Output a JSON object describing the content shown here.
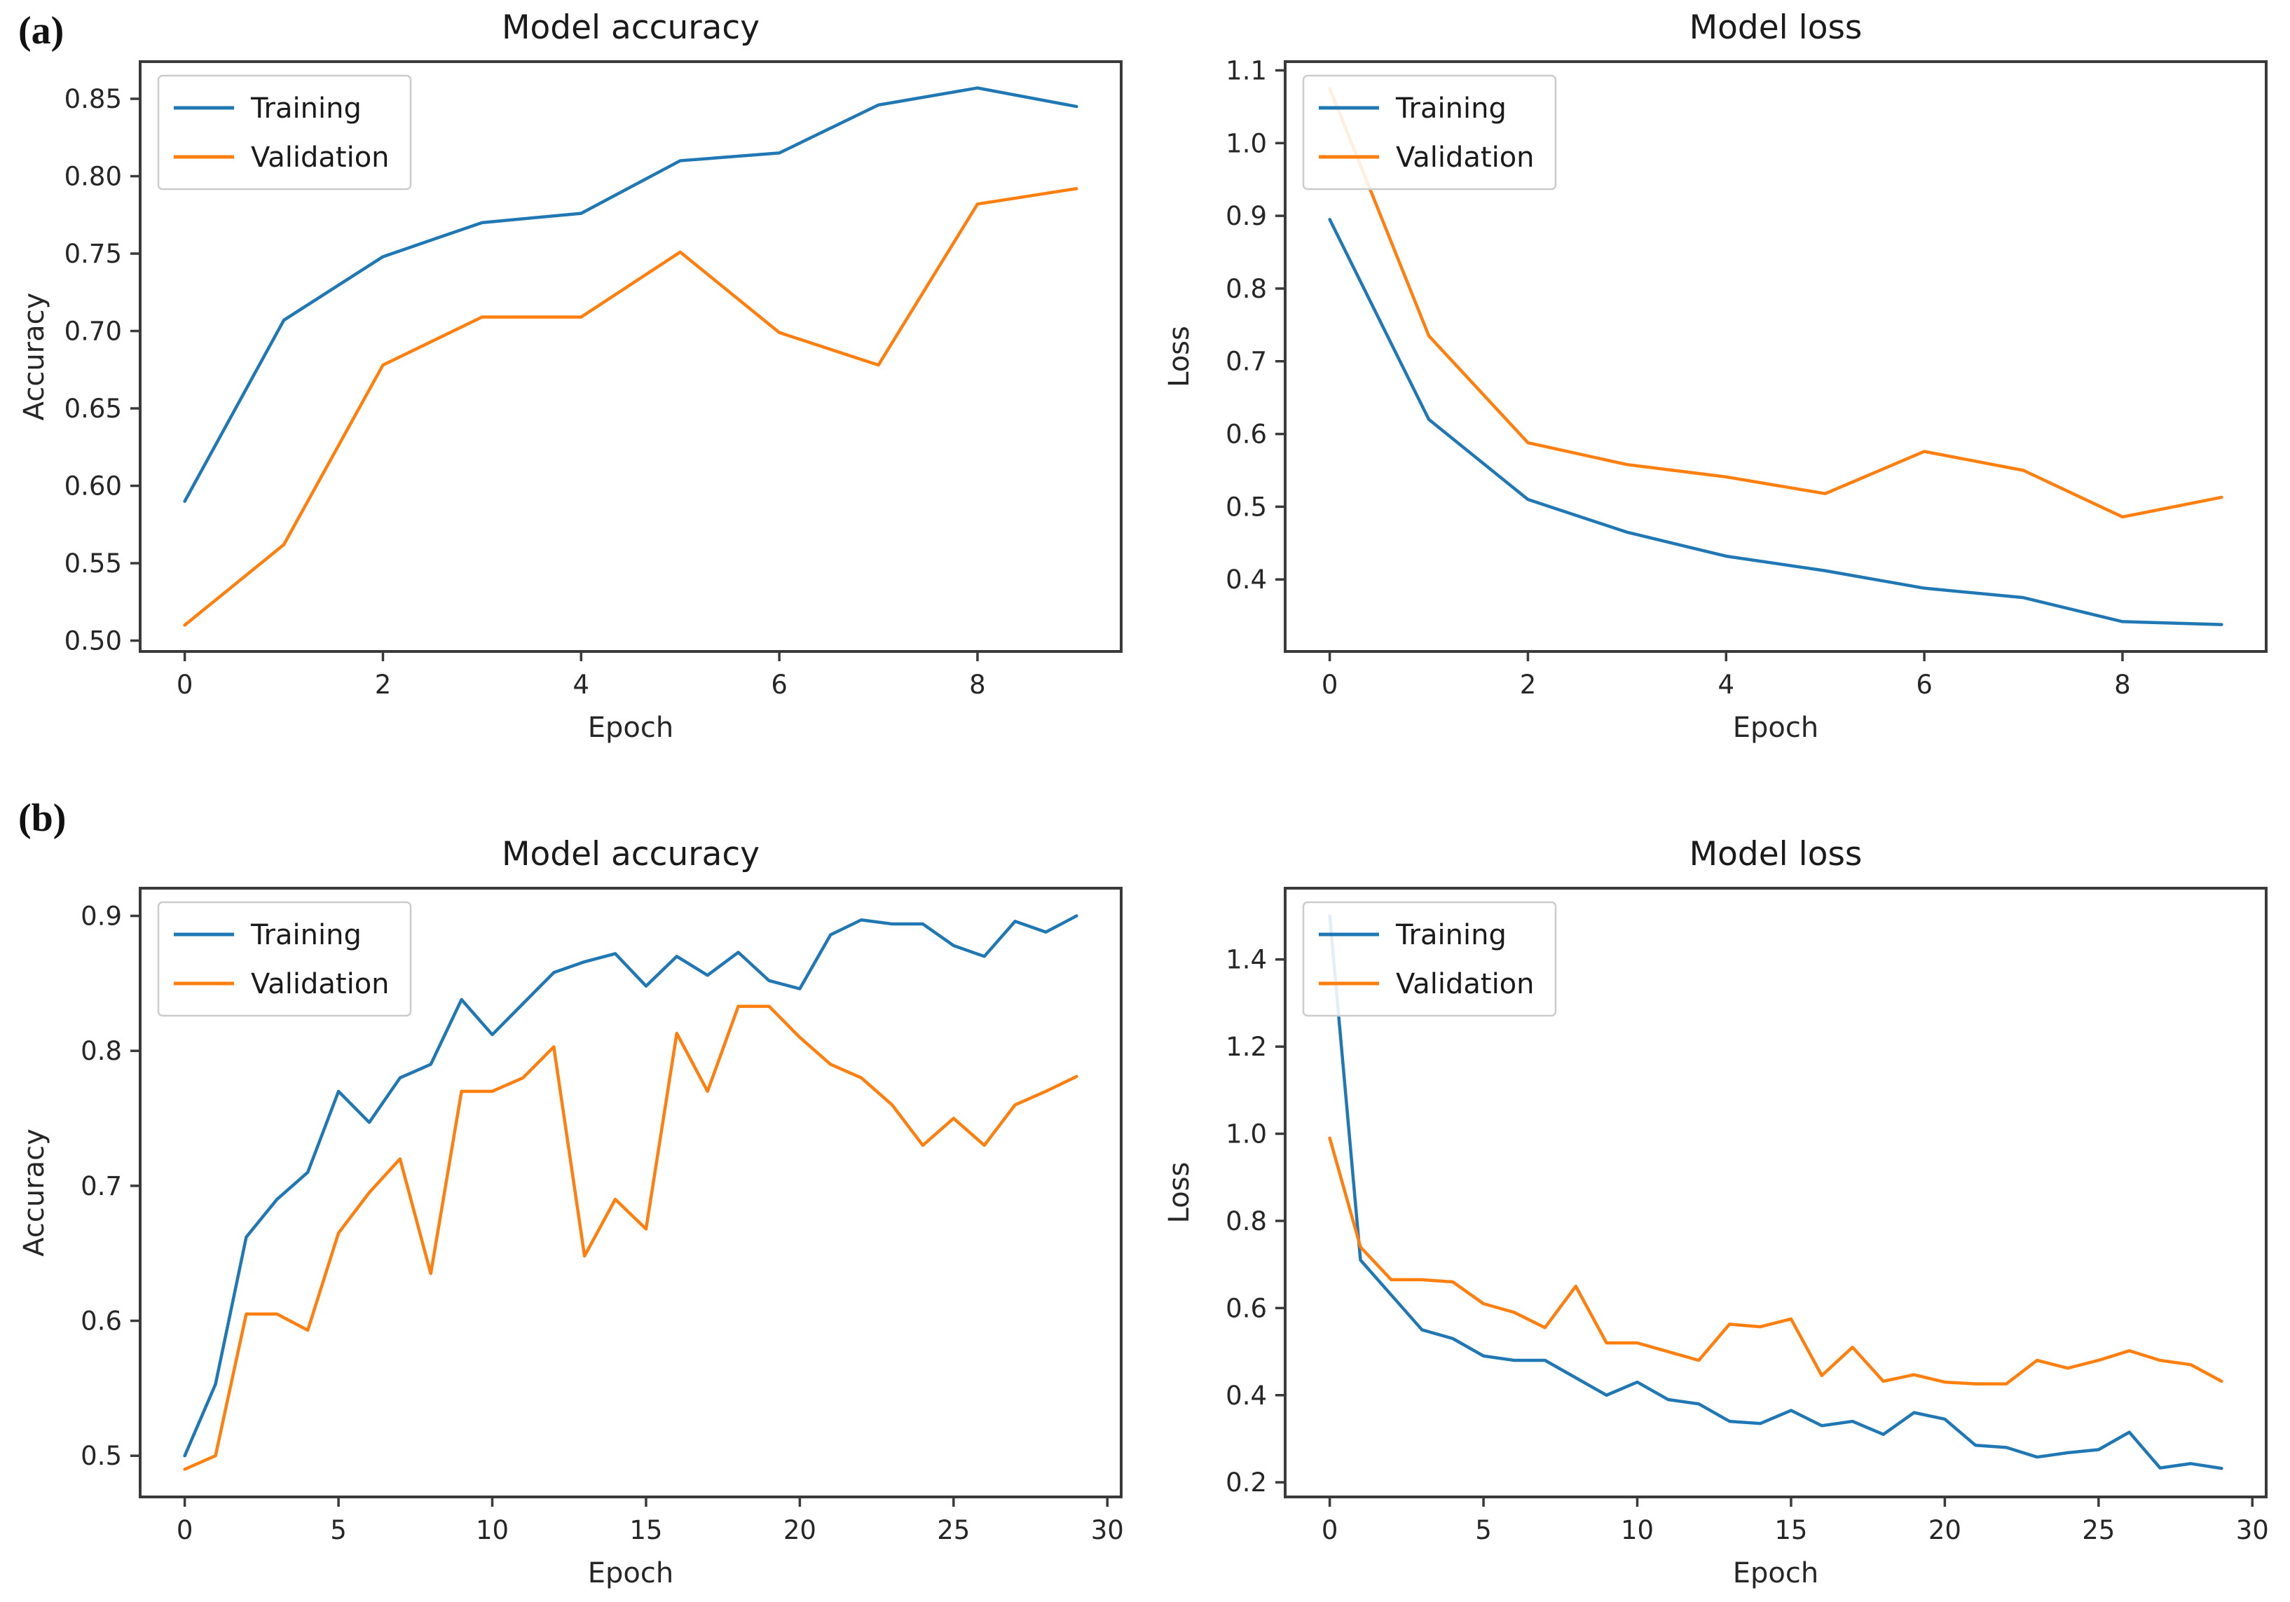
{
  "figure": {
    "row_labels": [
      {
        "label": "(a)"
      },
      {
        "label": "(b)"
      }
    ],
    "colors": {
      "training": "#1f77b4",
      "validation": "#ff7f0e",
      "axis": "#3a3a3a",
      "text": "#262626",
      "legend_border": "#cccccc"
    }
  },
  "chart_data": [
    {
      "id": "a-accuracy",
      "row": "a",
      "type": "line",
      "title": "Model accuracy",
      "xlabel": "Epoch",
      "ylabel": "Accuracy",
      "grid": false,
      "legend_position": "upper left",
      "legend": [
        "Training",
        "Validation"
      ],
      "x": [
        0,
        1,
        2,
        3,
        4,
        5,
        6,
        7,
        8,
        9
      ],
      "xlim": [
        -0.45,
        9.45
      ],
      "ylim": [
        0.493,
        0.874
      ],
      "xticks": [
        0,
        2,
        4,
        6,
        8
      ],
      "yticks": [
        0.5,
        0.55,
        0.6,
        0.65,
        0.7,
        0.75,
        0.8,
        0.85
      ],
      "xtick_decimals": 0,
      "ytick_decimals": 2,
      "series": [
        {
          "name": "Training",
          "color": "#1f77b4",
          "values": [
            0.59,
            0.707,
            0.748,
            0.77,
            0.776,
            0.81,
            0.815,
            0.846,
            0.857,
            0.845
          ]
        },
        {
          "name": "Validation",
          "color": "#ff7f0e",
          "values": [
            0.51,
            0.562,
            0.678,
            0.709,
            0.709,
            0.751,
            0.699,
            0.678,
            0.782,
            0.792
          ]
        }
      ]
    },
    {
      "id": "a-loss",
      "row": "a",
      "type": "line",
      "title": "Model loss",
      "xlabel": "Epoch",
      "ylabel": "Loss",
      "grid": false,
      "legend_position": "upper left",
      "legend": [
        "Training",
        "Validation"
      ],
      "x": [
        0,
        1,
        2,
        3,
        4,
        5,
        6,
        7,
        8,
        9
      ],
      "xlim": [
        -0.45,
        9.45
      ],
      "ylim": [
        0.301,
        1.112
      ],
      "xticks": [
        0,
        2,
        4,
        6,
        8
      ],
      "yticks": [
        0.4,
        0.5,
        0.6,
        0.7,
        0.8,
        0.9,
        1.0,
        1.1
      ],
      "xtick_decimals": 0,
      "ytick_decimals": 1,
      "series": [
        {
          "name": "Training",
          "color": "#1f77b4",
          "values": [
            0.895,
            0.62,
            0.51,
            0.465,
            0.432,
            0.412,
            0.388,
            0.375,
            0.342,
            0.338
          ]
        },
        {
          "name": "Validation",
          "color": "#ff7f0e",
          "values": [
            1.075,
            0.735,
            0.588,
            0.558,
            0.541,
            0.518,
            0.576,
            0.55,
            0.486,
            0.513
          ]
        }
      ]
    },
    {
      "id": "b-accuracy",
      "row": "b",
      "type": "line",
      "title": "Model accuracy",
      "xlabel": "Epoch",
      "ylabel": "Accuracy",
      "grid": false,
      "legend_position": "upper left",
      "legend": [
        "Training",
        "Validation"
      ],
      "x": [
        0,
        1,
        2,
        3,
        4,
        5,
        6,
        7,
        8,
        9,
        10,
        11,
        12,
        13,
        14,
        15,
        16,
        17,
        18,
        19,
        20,
        21,
        22,
        23,
        24,
        25,
        26,
        27,
        28,
        29
      ],
      "xlim": [
        -1.45,
        30.45
      ],
      "ylim": [
        0.4695,
        0.9205
      ],
      "xticks": [
        0,
        5,
        10,
        15,
        20,
        25,
        30
      ],
      "yticks": [
        0.5,
        0.6,
        0.7,
        0.8,
        0.9
      ],
      "xtick_decimals": 0,
      "ytick_decimals": 1,
      "series": [
        {
          "name": "Training",
          "color": "#1f77b4",
          "values": [
            0.5,
            0.553,
            0.662,
            0.69,
            0.71,
            0.77,
            0.747,
            0.78,
            0.79,
            0.838,
            0.812,
            0.835,
            0.858,
            0.866,
            0.872,
            0.848,
            0.87,
            0.856,
            0.873,
            0.852,
            0.846,
            0.886,
            0.897,
            0.894,
            0.894,
            0.878,
            0.87,
            0.896,
            0.888,
            0.9
          ]
        },
        {
          "name": "Validation",
          "color": "#ff7f0e",
          "values": [
            0.49,
            0.5,
            0.605,
            0.605,
            0.593,
            0.665,
            0.695,
            0.72,
            0.635,
            0.77,
            0.77,
            0.78,
            0.803,
            0.648,
            0.69,
            0.668,
            0.813,
            0.77,
            0.833,
            0.833,
            0.81,
            0.79,
            0.78,
            0.76,
            0.73,
            0.75,
            0.73,
            0.76,
            0.77,
            0.781
          ]
        }
      ]
    },
    {
      "id": "b-loss",
      "row": "b",
      "type": "line",
      "title": "Model loss",
      "xlabel": "Epoch",
      "ylabel": "Loss",
      "grid": false,
      "legend_position": "upper left",
      "legend": [
        "Training",
        "Validation"
      ],
      "x": [
        0,
        1,
        2,
        3,
        4,
        5,
        6,
        7,
        8,
        9,
        10,
        11,
        12,
        13,
        14,
        15,
        16,
        17,
        18,
        19,
        20,
        21,
        22,
        23,
        24,
        25,
        26,
        27,
        28,
        29
      ],
      "xlim": [
        -1.45,
        30.45
      ],
      "ylim": [
        0.1665,
        1.5635
      ],
      "xticks": [
        0,
        5,
        10,
        15,
        20,
        25,
        30
      ],
      "yticks": [
        0.2,
        0.4,
        0.6,
        0.8,
        1.0,
        1.2,
        1.4
      ],
      "xtick_decimals": 0,
      "ytick_decimals": 1,
      "series": [
        {
          "name": "Training",
          "color": "#1f77b4",
          "values": [
            1.5,
            0.71,
            0.63,
            0.55,
            0.53,
            0.49,
            0.48,
            0.48,
            0.44,
            0.4,
            0.43,
            0.39,
            0.38,
            0.34,
            0.335,
            0.365,
            0.33,
            0.34,
            0.31,
            0.36,
            0.345,
            0.285,
            0.28,
            0.258,
            0.268,
            0.275,
            0.315,
            0.233,
            0.243,
            0.232
          ]
        },
        {
          "name": "Validation",
          "color": "#ff7f0e",
          "values": [
            0.99,
            0.74,
            0.665,
            0.665,
            0.66,
            0.61,
            0.59,
            0.555,
            0.65,
            0.52,
            0.52,
            0.5,
            0.48,
            0.563,
            0.557,
            0.575,
            0.445,
            0.51,
            0.432,
            0.447,
            0.43,
            0.426,
            0.426,
            0.48,
            0.462,
            0.48,
            0.502,
            0.48,
            0.47,
            0.432
          ]
        }
      ]
    }
  ]
}
